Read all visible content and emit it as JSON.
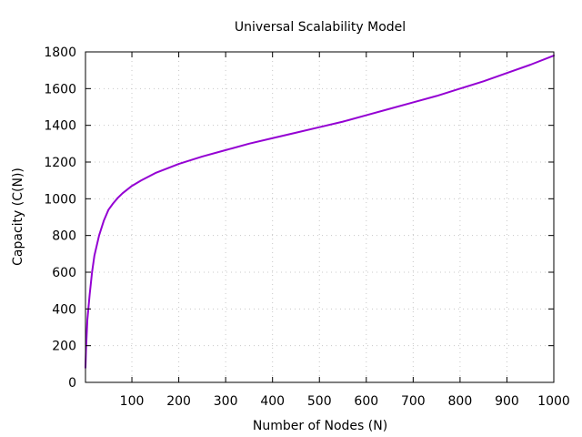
{
  "chart_data": {
    "type": "line",
    "title": "Universal Scalability Model",
    "xlabel": "Number of Nodes (N)",
    "ylabel": "Capacity (C(N))",
    "xlim": [
      1,
      1000
    ],
    "ylim": [
      0,
      1800
    ],
    "x_ticks": [
      100,
      200,
      300,
      400,
      500,
      600,
      700,
      800,
      900,
      1000
    ],
    "y_ticks": [
      0,
      200,
      400,
      600,
      800,
      1000,
      1200,
      1400,
      1600,
      1800
    ],
    "grid": true,
    "legend": "none",
    "series": [
      {
        "color": "#9400d3",
        "x": [
          1,
          2,
          5,
          10,
          15,
          20,
          30,
          40,
          50,
          60,
          70,
          80,
          100,
          120,
          150,
          200,
          250,
          300,
          350,
          400,
          450,
          500,
          550,
          600,
          650,
          700,
          750,
          800,
          850,
          900,
          950,
          1000
        ],
        "y": [
          80,
          170,
          340,
          480,
          600,
          690,
          800,
          880,
          940,
          975,
          1005,
          1030,
          1070,
          1100,
          1140,
          1190,
          1230,
          1265,
          1300,
          1330,
          1360,
          1390,
          1420,
          1455,
          1490,
          1525,
          1560,
          1600,
          1640,
          1685,
          1730,
          1780
        ]
      }
    ]
  }
}
